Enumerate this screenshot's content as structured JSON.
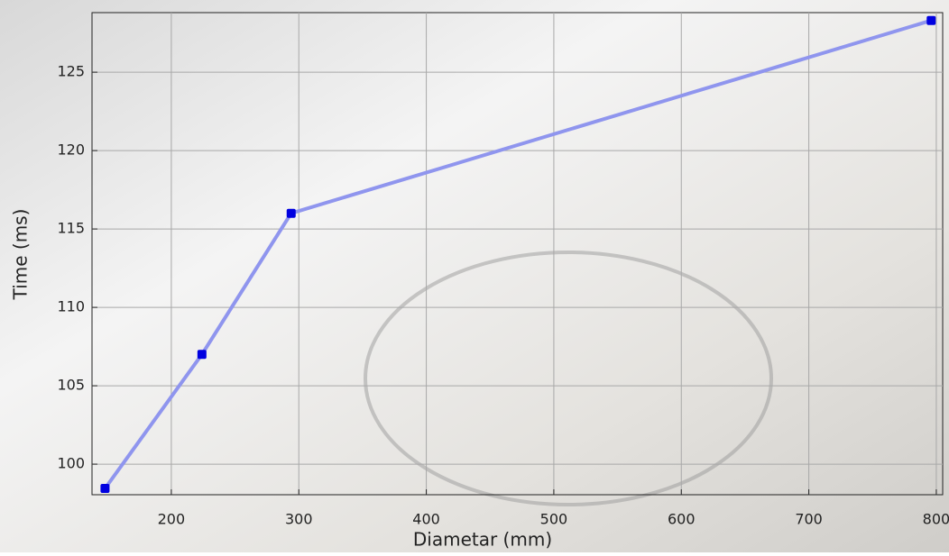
{
  "chart_data": {
    "type": "line",
    "x_label": "Diametar (mm)",
    "y_label": "Time (ms)",
    "x": [
      148,
      224,
      294,
      796
    ],
    "series": [
      {
        "color": "#8f95ee",
        "marker_color": "#0000e0",
        "values": [
          98.45,
          107,
          116,
          128.3
        ]
      }
    ],
    "xlim": [
      137.8,
      805
    ],
    "xticks": [
      200,
      300,
      400,
      500,
      600,
      700,
      800
    ],
    "ylim": [
      98.05,
      128.8
    ],
    "yticks": [
      100,
      105,
      110,
      115,
      120,
      125
    ],
    "grid": true
  }
}
